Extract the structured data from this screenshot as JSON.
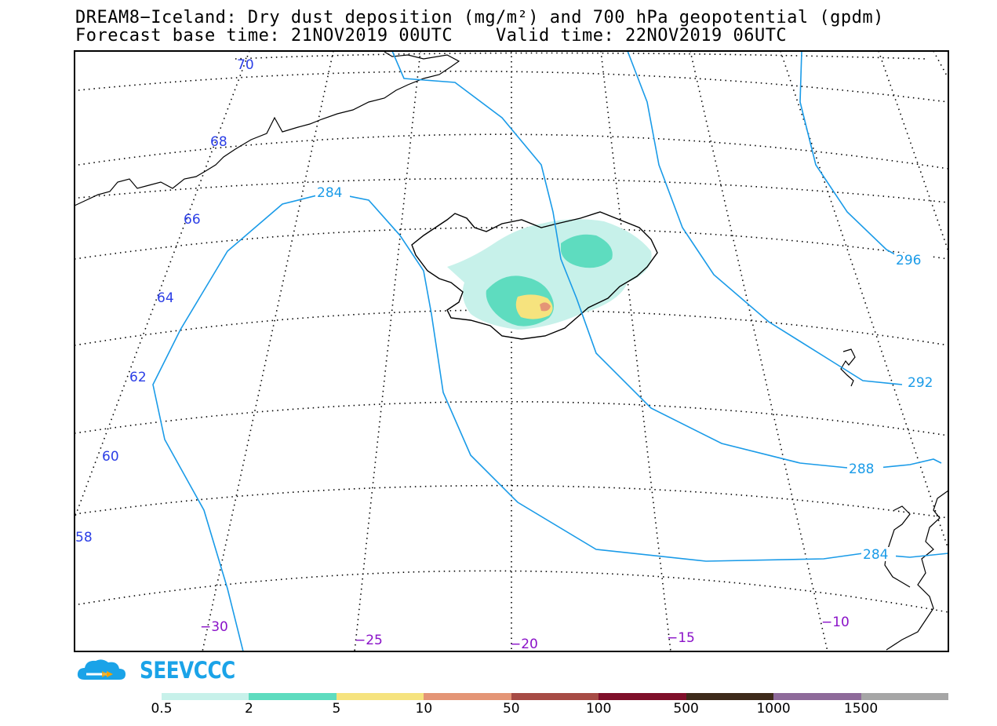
{
  "title_line1": "DREAM8−Iceland: Dry dust deposition (mg/m²) and 700 hPa geopotential (gpdm)",
  "title_line2": "Forecast base time: 21NOV2019 00UTC    Valid time: 22NOV2019 06UTC",
  "latitude_labels": [
    "70",
    "68",
    "66",
    "64",
    "62",
    "60",
    "58"
  ],
  "longitude_labels": [
    "−30",
    "−25",
    "−20",
    "−15",
    "−10"
  ],
  "contour_labels": [
    "284",
    "296",
    "292",
    "288",
    "284"
  ],
  "brand": "SEEVCCC",
  "colorbar": {
    "colors": [
      "#c7f1ea",
      "#5edcbf",
      "#f6e37e",
      "#e49576",
      "#a74b45",
      "#7f0f2a",
      "#3e2a1a",
      "#8e6a9a",
      "#a6a6a6"
    ],
    "labels": [
      "0.5",
      "2",
      "5",
      "10",
      "50",
      "100",
      "500",
      "1000",
      "1500"
    ]
  },
  "colors": {
    "contour": "#1a9be8",
    "latitude_label": "#2b3ee6",
    "longitude_label": "#8a12c8"
  }
}
